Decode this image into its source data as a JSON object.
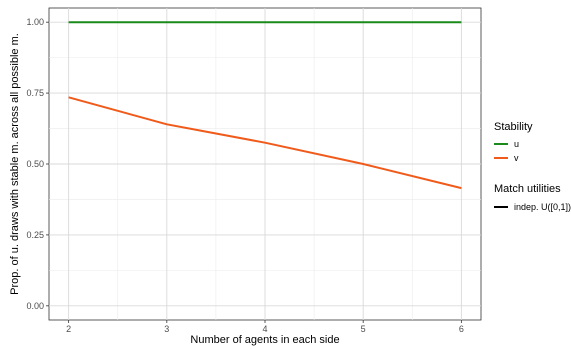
{
  "chart_data": {
    "type": "line",
    "xlabel": "Number of agents in each side",
    "ylabel": "Prop. of u. draws with stable m. across all possible m.",
    "x": [
      2,
      3,
      4,
      5,
      6
    ],
    "x_ticks": [
      "2",
      "3",
      "4",
      "5",
      "6"
    ],
    "xlim": [
      1.8,
      6.2
    ],
    "ylim": [
      -0.05,
      1.05
    ],
    "y_ticks": [
      "0.00",
      "0.25",
      "0.50",
      "0.75",
      "1.00"
    ],
    "grid": true,
    "series": [
      {
        "name": "u",
        "color": "#1a8a1a",
        "values": [
          1.0,
          1.0,
          1.0,
          1.0,
          1.0
        ]
      },
      {
        "name": "v",
        "color": "#f05a1a",
        "values": [
          0.735,
          0.64,
          0.575,
          0.5,
          0.415
        ]
      }
    ],
    "legends": [
      {
        "title": "Stability",
        "entries": [
          {
            "label": "u",
            "color": "#1a8a1a"
          },
          {
            "label": "v",
            "color": "#f05a1a"
          }
        ]
      },
      {
        "title": "Match utilities",
        "entries": [
          {
            "label": "indep. U([0,1])",
            "color": "#000000"
          }
        ]
      }
    ],
    "legend_position": "right"
  }
}
